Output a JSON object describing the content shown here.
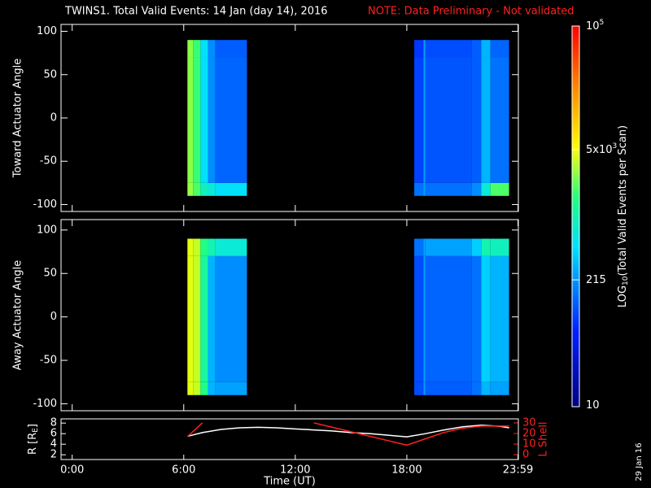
{
  "title": "TWINS1. Total Valid Events: 14 Jan (day  14), 2016",
  "note": "NOTE: Data Preliminary - Not validated",
  "stamp": "29 Jan 16",
  "colorbar": {
    "label": "LOG",
    "label_sub": "10",
    "label_rest": "(Total Valid Events per Scan)",
    "lim": [
      10,
      100000
    ],
    "log": true,
    "ticks": [
      10,
      215,
      {
        "value": 5000,
        "label": "5x10",
        "sup": "3"
      },
      {
        "value": 100000,
        "label": "10",
        "sup": "5"
      }
    ]
  },
  "chart_data": [
    {
      "type": "heatmap",
      "ylabel": "Toward Actuator Angle",
      "xlim": [
        -0.6,
        24
      ],
      "ylim": [
        -108,
        108
      ],
      "yticks": [
        100,
        50,
        0,
        -50,
        -100
      ],
      "x_edges": [
        6.2,
        6.5,
        6.9,
        7.3,
        7.7,
        9.4,
        18.4,
        18.9,
        19.0,
        21.5,
        22.0,
        22.5,
        23.5
      ],
      "y_edges": [
        -90,
        -75,
        70,
        90
      ],
      "values": [
        [
          3000,
          2000,
          900,
          700,
          500,
          null,
          150,
          250,
          150,
          200,
          700,
          2000
        ],
        [
          2800,
          1800,
          500,
          200,
          130,
          null,
          90,
          250,
          110,
          120,
          300,
          150
        ],
        [
          2800,
          1800,
          500,
          200,
          120,
          null,
          80,
          250,
          100,
          120,
          300,
          130
        ]
      ]
    },
    {
      "type": "heatmap",
      "ylabel": "Away Actuator Angle",
      "xlim": [
        -0.6,
        24
      ],
      "ylim": [
        -108,
        112
      ],
      "yticks": [
        100,
        50,
        0,
        -50,
        -100
      ],
      "x_edges": [
        6.2,
        6.5,
        6.9,
        7.3,
        7.7,
        9.4,
        18.4,
        18.9,
        19.0,
        21.5,
        22.0,
        22.5,
        23.5
      ],
      "y_edges": [
        -90,
        -75,
        70,
        90
      ],
      "values": [
        [
          4500,
          3800,
          1500,
          300,
          250,
          null,
          100,
          250,
          120,
          150,
          300,
          250
        ],
        [
          4500,
          3800,
          1200,
          300,
          200,
          null,
          100,
          250,
          130,
          150,
          400,
          300
        ],
        [
          4500,
          3800,
          1500,
          1000,
          700,
          null,
          150,
          250,
          250,
          400,
          1000,
          900
        ]
      ]
    },
    {
      "type": "line",
      "xlabel": "Time (UT)",
      "xlim": [
        -0.6,
        24
      ],
      "xticks": [
        {
          "value": 0,
          "label": "0:00"
        },
        {
          "value": 6,
          "label": "6:00"
        },
        {
          "value": 12,
          "label": "12:00"
        },
        {
          "value": 18,
          "label": "18:00"
        },
        {
          "value": 23.98,
          "label": "23:59"
        }
      ],
      "ylabel": "R [R",
      "ylabel_sub": "E",
      "ylabel_end": "]",
      "ylim": [
        1.1,
        8.8
      ],
      "yticks": [
        8,
        6,
        4,
        2
      ],
      "y2label": "L Shell",
      "y2lim": [
        -4.6,
        33.8
      ],
      "y2ticks": [
        30,
        20,
        10,
        0
      ],
      "x": [
        6.2,
        7,
        8,
        9,
        10,
        11,
        12,
        13,
        14,
        15,
        16,
        17,
        18,
        19,
        20,
        21,
        22,
        23,
        23.5
      ],
      "series": [
        {
          "color": "#ffffff",
          "axis": "y",
          "values": [
            5.5,
            6.2,
            6.8,
            7.1,
            7.2,
            7.1,
            6.9,
            6.7,
            6.5,
            6.2,
            6.0,
            5.7,
            5.4,
            6.0,
            6.7,
            7.3,
            7.6,
            7.4,
            7.1
          ]
        },
        {
          "color": "#ff2020",
          "axis": "y2",
          "values": [
            17,
            30,
            null,
            null,
            null,
            null,
            null,
            30,
            25.8,
            21.6,
            17.4,
            13.2,
            9,
            15,
            21,
            25,
            27,
            27,
            27
          ]
        }
      ]
    }
  ]
}
